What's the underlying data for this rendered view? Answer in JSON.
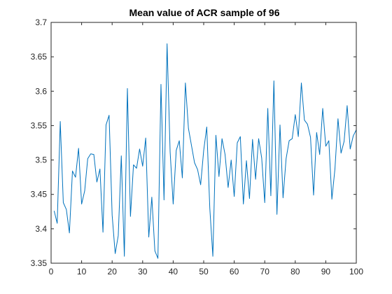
{
  "chart_data": {
    "type": "line",
    "title": "Mean value of ACR sample of 96",
    "xlabel": "",
    "ylabel": "",
    "xlim": [
      0,
      100
    ],
    "ylim": [
      3.35,
      3.7
    ],
    "x_ticks": [
      0,
      10,
      20,
      30,
      40,
      50,
      60,
      70,
      80,
      90,
      100
    ],
    "y_ticks": [
      3.35,
      3.4,
      3.45,
      3.5,
      3.55,
      3.6,
      3.65,
      3.7
    ],
    "y_tick_labels": [
      "3.35",
      "3.4",
      "3.45",
      "3.5",
      "3.55",
      "3.6",
      "3.65",
      "3.7"
    ],
    "grid": false,
    "line_color": "#0072bd",
    "series": [
      {
        "x": [
          1,
          2,
          3,
          4,
          5,
          6,
          7,
          8,
          9,
          10,
          11,
          12,
          13,
          14,
          15,
          16,
          17,
          18,
          19,
          20,
          21,
          22,
          23,
          24,
          25,
          26,
          27,
          28,
          29,
          30,
          31,
          32,
          33,
          34,
          35,
          36,
          37,
          38,
          39,
          40,
          41,
          42,
          43,
          44,
          45,
          46,
          47,
          48,
          49,
          50,
          51,
          52,
          53,
          54,
          55,
          56,
          57,
          58,
          59,
          60,
          61,
          62,
          63,
          64,
          65,
          66,
          67,
          68,
          69,
          70,
          71,
          72,
          73,
          74,
          75,
          76,
          77,
          78,
          79,
          80,
          81,
          82,
          83,
          84,
          85,
          86,
          87,
          88,
          89,
          90,
          91,
          92,
          93,
          94,
          95,
          96,
          97,
          98,
          99,
          100
        ],
        "values": [
          3.426,
          3.408,
          3.556,
          3.438,
          3.428,
          3.394,
          3.484,
          3.475,
          3.517,
          3.436,
          3.455,
          3.502,
          3.509,
          3.508,
          3.468,
          3.487,
          3.395,
          3.551,
          3.565,
          3.42,
          3.364,
          3.39,
          3.506,
          3.36,
          3.604,
          3.418,
          3.493,
          3.488,
          3.516,
          3.491,
          3.532,
          3.388,
          3.446,
          3.368,
          3.357,
          3.61,
          3.442,
          3.669,
          3.512,
          3.436,
          3.514,
          3.528,
          3.474,
          3.612,
          3.546,
          3.521,
          3.496,
          3.486,
          3.464,
          3.514,
          3.548,
          3.43,
          3.36,
          3.536,
          3.476,
          3.531,
          3.508,
          3.46,
          3.5,
          3.447,
          3.525,
          3.534,
          3.436,
          3.499,
          3.444,
          3.53,
          3.472,
          3.531,
          3.503,
          3.438,
          3.575,
          3.448,
          3.615,
          3.421,
          3.551,
          3.445,
          3.502,
          3.528,
          3.531,
          3.566,
          3.534,
          3.612,
          3.558,
          3.552,
          3.533,
          3.449,
          3.54,
          3.508,
          3.575,
          3.52,
          3.528,
          3.443,
          3.487,
          3.56,
          3.51,
          3.527,
          3.579,
          3.516,
          3.535,
          3.544
        ]
      }
    ]
  }
}
